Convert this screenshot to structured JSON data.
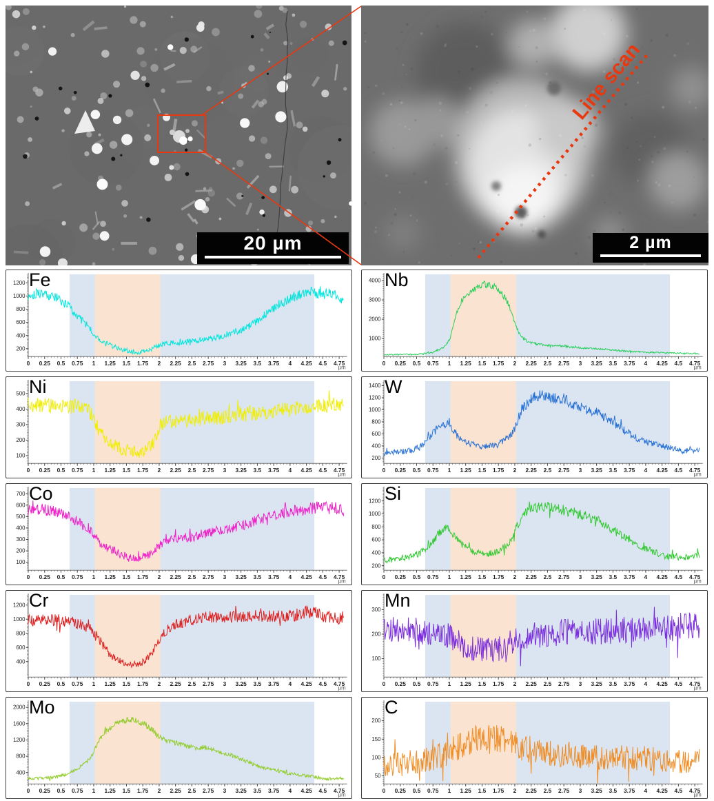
{
  "sem_images": {
    "left": {
      "description": "SEM overview micrograph with zoom region box",
      "scale_label": "20 µm"
    },
    "right": {
      "description": "Magnified SEM micrograph of selected particle",
      "scale_label": "2 µm",
      "annotation": "Line scan"
    }
  },
  "annotation_color": "#e8380f",
  "x_axis": {
    "min": 0,
    "max": 4.83,
    "data_max": 4.82,
    "tick_interval": 0.25,
    "minor_tick": 0.05,
    "tick_labels": [
      "0",
      "0.25",
      "0.5",
      "0.75",
      "1",
      "1.25",
      "1.5",
      "1.75",
      "2",
      "2.25",
      "2.5",
      "2.75",
      "3",
      "3.25",
      "3.5",
      "3.75",
      "4",
      "4.25",
      "4.5",
      "4.75"
    ],
    "unit": "µm"
  },
  "highlight_regions": [
    {
      "from": 0.63,
      "to": 4.37,
      "color": "#dbe5f1"
    },
    {
      "from": 1.02,
      "to": 2.02,
      "color": "#fbe3d1"
    }
  ],
  "chart_data": [
    {
      "type": "line",
      "label": "Fe",
      "color": "#00e5dc",
      "seed": 101,
      "ylim": [
        80,
        1330
      ],
      "yticks": [
        200,
        400,
        600,
        800,
        1000,
        1200
      ],
      "noise": {
        "base": 28,
        "frac": 0.05
      },
      "trend": [
        [
          0,
          1000
        ],
        [
          0.15,
          1060
        ],
        [
          0.3,
          1010
        ],
        [
          0.45,
          960
        ],
        [
          0.6,
          860
        ],
        [
          0.75,
          700
        ],
        [
          0.9,
          560
        ],
        [
          1.0,
          420
        ],
        [
          1.1,
          330
        ],
        [
          1.25,
          250
        ],
        [
          1.4,
          200
        ],
        [
          1.55,
          160
        ],
        [
          1.7,
          150
        ],
        [
          1.85,
          185
        ],
        [
          1.95,
          230
        ],
        [
          2.05,
          280
        ],
        [
          2.3,
          290
        ],
        [
          2.6,
          320
        ],
        [
          2.9,
          370
        ],
        [
          3.1,
          430
        ],
        [
          3.3,
          500
        ],
        [
          3.5,
          620
        ],
        [
          3.7,
          780
        ],
        [
          3.9,
          920
        ],
        [
          4.1,
          1000
        ],
        [
          4.3,
          1060
        ],
        [
          4.5,
          1030
        ],
        [
          4.65,
          1050
        ],
        [
          4.82,
          900
        ]
      ]
    },
    {
      "type": "line",
      "label": "Nb",
      "color": "#23cd57",
      "seed": 202,
      "ylim": [
        60,
        4330
      ],
      "yticks": [
        1000,
        2000,
        3000,
        4000
      ],
      "noise": {
        "base": 30,
        "frac": 0.035
      },
      "trend": [
        [
          0,
          160
        ],
        [
          0.4,
          170
        ],
        [
          0.6,
          200
        ],
        [
          0.75,
          280
        ],
        [
          0.9,
          500
        ],
        [
          1.0,
          900
        ],
        [
          1.05,
          1500
        ],
        [
          1.1,
          2200
        ],
        [
          1.15,
          2700
        ],
        [
          1.25,
          3200
        ],
        [
          1.35,
          3500
        ],
        [
          1.45,
          3700
        ],
        [
          1.55,
          3800
        ],
        [
          1.65,
          3750
        ],
        [
          1.75,
          3550
        ],
        [
          1.85,
          3150
        ],
        [
          1.9,
          2800
        ],
        [
          1.95,
          2350
        ],
        [
          2.0,
          1800
        ],
        [
          2.05,
          1400
        ],
        [
          2.1,
          1100
        ],
        [
          2.2,
          830
        ],
        [
          2.35,
          700
        ],
        [
          2.5,
          650
        ],
        [
          2.7,
          620
        ],
        [
          2.9,
          540
        ],
        [
          3.1,
          490
        ],
        [
          3.4,
          430
        ],
        [
          3.7,
          340
        ],
        [
          4.0,
          290
        ],
        [
          4.3,
          260
        ],
        [
          4.6,
          230
        ],
        [
          4.82,
          220
        ]
      ]
    },
    {
      "type": "line",
      "label": "Ni",
      "color": "#f0ee00",
      "seed": 303,
      "ylim": [
        50,
        580
      ],
      "yticks": [
        100,
        200,
        300,
        400,
        500
      ],
      "noise": {
        "base": 36,
        "frac": 0.03
      },
      "trend": [
        [
          0,
          430
        ],
        [
          0.25,
          420
        ],
        [
          0.5,
          425
        ],
        [
          0.75,
          415
        ],
        [
          0.9,
          395
        ],
        [
          1.0,
          350
        ],
        [
          1.05,
          290
        ],
        [
          1.15,
          220
        ],
        [
          1.3,
          170
        ],
        [
          1.45,
          140
        ],
        [
          1.6,
          125
        ],
        [
          1.75,
          125
        ],
        [
          1.85,
          150
        ],
        [
          1.95,
          210
        ],
        [
          2.0,
          290
        ],
        [
          2.1,
          320
        ],
        [
          2.4,
          325
        ],
        [
          2.7,
          340
        ],
        [
          3.0,
          350
        ],
        [
          3.3,
          365
        ],
        [
          3.6,
          380
        ],
        [
          3.9,
          395
        ],
        [
          4.2,
          405
        ],
        [
          4.5,
          420
        ],
        [
          4.82,
          430
        ]
      ]
    },
    {
      "type": "line",
      "label": "W",
      "color": "#2a72d4",
      "seed": 404,
      "ylim": [
        110,
        1475
      ],
      "yticks": [
        200,
        400,
        600,
        800,
        1000,
        1200,
        1400
      ],
      "noise": {
        "base": 30,
        "frac": 0.055
      },
      "trend": [
        [
          0,
          270
        ],
        [
          0.2,
          300
        ],
        [
          0.4,
          320
        ],
        [
          0.55,
          380
        ],
        [
          0.65,
          480
        ],
        [
          0.75,
          620
        ],
        [
          0.85,
          720
        ],
        [
          0.95,
          780
        ],
        [
          1.0,
          790
        ],
        [
          1.05,
          640
        ],
        [
          1.15,
          540
        ],
        [
          1.3,
          440
        ],
        [
          1.45,
          390
        ],
        [
          1.6,
          390
        ],
        [
          1.75,
          430
        ],
        [
          1.85,
          500
        ],
        [
          1.95,
          600
        ],
        [
          2.0,
          700
        ],
        [
          2.05,
          850
        ],
        [
          2.1,
          1000
        ],
        [
          2.2,
          1130
        ],
        [
          2.3,
          1220
        ],
        [
          2.45,
          1230
        ],
        [
          2.6,
          1180
        ],
        [
          2.75,
          1180
        ],
        [
          2.9,
          1080
        ],
        [
          3.05,
          1020
        ],
        [
          3.2,
          980
        ],
        [
          3.35,
          890
        ],
        [
          3.5,
          790
        ],
        [
          3.65,
          680
        ],
        [
          3.8,
          570
        ],
        [
          3.95,
          490
        ],
        [
          4.1,
          430
        ],
        [
          4.25,
          400
        ],
        [
          4.4,
          360
        ],
        [
          4.55,
          320
        ],
        [
          4.7,
          330
        ],
        [
          4.82,
          340
        ]
      ]
    },
    {
      "type": "line",
      "label": "Co",
      "color": "#ef1fc9",
      "seed": 505,
      "ylim": [
        30,
        750
      ],
      "yticks": [
        100,
        200,
        300,
        400,
        500,
        600,
        700
      ],
      "noise": {
        "base": 30,
        "frac": 0.04
      },
      "trend": [
        [
          0,
          560
        ],
        [
          0.2,
          565
        ],
        [
          0.4,
          545
        ],
        [
          0.6,
          500
        ],
        [
          0.75,
          460
        ],
        [
          0.9,
          410
        ],
        [
          1.0,
          340
        ],
        [
          1.1,
          260
        ],
        [
          1.25,
          215
        ],
        [
          1.4,
          175
        ],
        [
          1.55,
          135
        ],
        [
          1.7,
          140
        ],
        [
          1.85,
          165
        ],
        [
          1.95,
          215
        ],
        [
          2.05,
          270
        ],
        [
          2.25,
          305
        ],
        [
          2.5,
          320
        ],
        [
          2.75,
          360
        ],
        [
          3.0,
          385
        ],
        [
          3.25,
          420
        ],
        [
          3.5,
          470
        ],
        [
          3.75,
          510
        ],
        [
          4.0,
          540
        ],
        [
          4.25,
          565
        ],
        [
          4.5,
          590
        ],
        [
          4.65,
          595
        ],
        [
          4.82,
          540
        ]
      ]
    },
    {
      "type": "line",
      "label": "Si",
      "color": "#31c831",
      "seed": 606,
      "ylim": [
        130,
        1400
      ],
      "yticks": [
        200,
        400,
        600,
        800,
        1000,
        1200
      ],
      "noise": {
        "base": 35,
        "frac": 0.045
      },
      "trend": [
        [
          0,
          280
        ],
        [
          0.2,
          310
        ],
        [
          0.4,
          340
        ],
        [
          0.55,
          390
        ],
        [
          0.7,
          510
        ],
        [
          0.8,
          650
        ],
        [
          0.9,
          760
        ],
        [
          0.97,
          820
        ],
        [
          1.03,
          740
        ],
        [
          1.1,
          620
        ],
        [
          1.2,
          520
        ],
        [
          1.35,
          430
        ],
        [
          1.5,
          385
        ],
        [
          1.65,
          400
        ],
        [
          1.8,
          450
        ],
        [
          1.9,
          530
        ],
        [
          1.97,
          620
        ],
        [
          2.03,
          800
        ],
        [
          2.1,
          950
        ],
        [
          2.2,
          1050
        ],
        [
          2.35,
          1100
        ],
        [
          2.5,
          1120
        ],
        [
          2.65,
          1090
        ],
        [
          2.8,
          1040
        ],
        [
          2.95,
          1010
        ],
        [
          3.1,
          960
        ],
        [
          3.25,
          900
        ],
        [
          3.4,
          820
        ],
        [
          3.55,
          720
        ],
        [
          3.7,
          640
        ],
        [
          3.85,
          540
        ],
        [
          4.0,
          460
        ],
        [
          4.15,
          400
        ],
        [
          4.3,
          350
        ],
        [
          4.5,
          320
        ],
        [
          4.65,
          330
        ],
        [
          4.82,
          370
        ]
      ]
    },
    {
      "type": "line",
      "label": "Cr",
      "color": "#dd2020",
      "seed": 707,
      "ylim": [
        180,
        1345
      ],
      "yticks": [
        400,
        600,
        800,
        1000,
        1200
      ],
      "noise": {
        "base": 25,
        "frac": 0.06
      },
      "trend": [
        [
          0,
          980
        ],
        [
          0.25,
          990
        ],
        [
          0.5,
          985
        ],
        [
          0.7,
          960
        ],
        [
          0.85,
          920
        ],
        [
          0.95,
          860
        ],
        [
          1.05,
          760
        ],
        [
          1.15,
          620
        ],
        [
          1.25,
          500
        ],
        [
          1.35,
          430
        ],
        [
          1.5,
          370
        ],
        [
          1.65,
          355
        ],
        [
          1.75,
          395
        ],
        [
          1.85,
          470
        ],
        [
          1.95,
          610
        ],
        [
          2.05,
          780
        ],
        [
          2.15,
          890
        ],
        [
          2.3,
          950
        ],
        [
          2.5,
          1000
        ],
        [
          2.75,
          1040
        ],
        [
          3.0,
          1020
        ],
        [
          3.25,
          1040
        ],
        [
          3.5,
          1045
        ],
        [
          3.75,
          1040
        ],
        [
          4.0,
          1050
        ],
        [
          4.2,
          1080
        ],
        [
          4.35,
          1120
        ],
        [
          4.5,
          1040
        ],
        [
          4.65,
          1040
        ],
        [
          4.82,
          990
        ]
      ]
    },
    {
      "type": "line",
      "label": "Mn",
      "color": "#7a2ddd",
      "seed": 808,
      "ylim": [
        25,
        360
      ],
      "yticks": [
        100,
        200,
        300
      ],
      "noise": {
        "base": 50,
        "frac": 0.02
      },
      "trend": [
        [
          0,
          225
        ],
        [
          0.3,
          218
        ],
        [
          0.6,
          212
        ],
        [
          0.9,
          200
        ],
        [
          1.05,
          180
        ],
        [
          1.2,
          155
        ],
        [
          1.4,
          138
        ],
        [
          1.6,
          135
        ],
        [
          1.8,
          145
        ],
        [
          1.95,
          165
        ],
        [
          2.1,
          185
        ],
        [
          2.4,
          200
        ],
        [
          2.7,
          208
        ],
        [
          3.0,
          212
        ],
        [
          3.3,
          212
        ],
        [
          3.6,
          215
        ],
        [
          3.9,
          218
        ],
        [
          4.2,
          225
        ],
        [
          4.5,
          235
        ],
        [
          4.82,
          228
        ]
      ]
    },
    {
      "type": "line",
      "label": "Mo",
      "color": "#8ecb25",
      "seed": 909,
      "ylim": [
        120,
        2140
      ],
      "yticks": [
        400,
        800,
        1200,
        1600,
        2000
      ],
      "noise": {
        "base": 28,
        "frac": 0.03
      },
      "trend": [
        [
          0,
          255
        ],
        [
          0.2,
          260
        ],
        [
          0.4,
          285
        ],
        [
          0.55,
          340
        ],
        [
          0.7,
          450
        ],
        [
          0.85,
          600
        ],
        [
          0.95,
          750
        ],
        [
          1.0,
          900
        ],
        [
          1.05,
          1100
        ],
        [
          1.15,
          1350
        ],
        [
          1.25,
          1500
        ],
        [
          1.35,
          1600
        ],
        [
          1.5,
          1700
        ],
        [
          1.6,
          1680
        ],
        [
          1.7,
          1640
        ],
        [
          1.8,
          1560
        ],
        [
          1.9,
          1440
        ],
        [
          2.0,
          1280
        ],
        [
          2.1,
          1200
        ],
        [
          2.25,
          1130
        ],
        [
          2.4,
          1060
        ],
        [
          2.55,
          1000
        ],
        [
          2.7,
          1010
        ],
        [
          2.85,
          940
        ],
        [
          3.0,
          870
        ],
        [
          3.15,
          790
        ],
        [
          3.3,
          700
        ],
        [
          3.45,
          600
        ],
        [
          3.6,
          520
        ],
        [
          3.75,
          460
        ],
        [
          3.9,
          410
        ],
        [
          4.05,
          360
        ],
        [
          4.2,
          330
        ],
        [
          4.35,
          300
        ],
        [
          4.5,
          255
        ],
        [
          4.65,
          245
        ],
        [
          4.82,
          255
        ]
      ]
    },
    {
      "type": "line",
      "label": "C",
      "color": "#ef8c24",
      "seed": 1010,
      "ylim": [
        28,
        252
      ],
      "yticks": [
        50,
        100,
        150,
        200
      ],
      "noise": {
        "base": 26,
        "frac": 0.09
      },
      "trend": [
        [
          0,
          78
        ],
        [
          0.25,
          82
        ],
        [
          0.5,
          90
        ],
        [
          0.75,
          100
        ],
        [
          0.95,
          110
        ],
        [
          1.1,
          125
        ],
        [
          1.25,
          140
        ],
        [
          1.4,
          150
        ],
        [
          1.55,
          152
        ],
        [
          1.7,
          150
        ],
        [
          1.85,
          148
        ],
        [
          2.0,
          135
        ],
        [
          2.15,
          125
        ],
        [
          2.35,
          118
        ],
        [
          2.6,
          112
        ],
        [
          2.9,
          108
        ],
        [
          3.2,
          102
        ],
        [
          3.5,
          100
        ],
        [
          3.8,
          98
        ],
        [
          4.1,
          96
        ],
        [
          4.4,
          92
        ],
        [
          4.7,
          92
        ],
        [
          4.82,
          96
        ]
      ]
    }
  ]
}
